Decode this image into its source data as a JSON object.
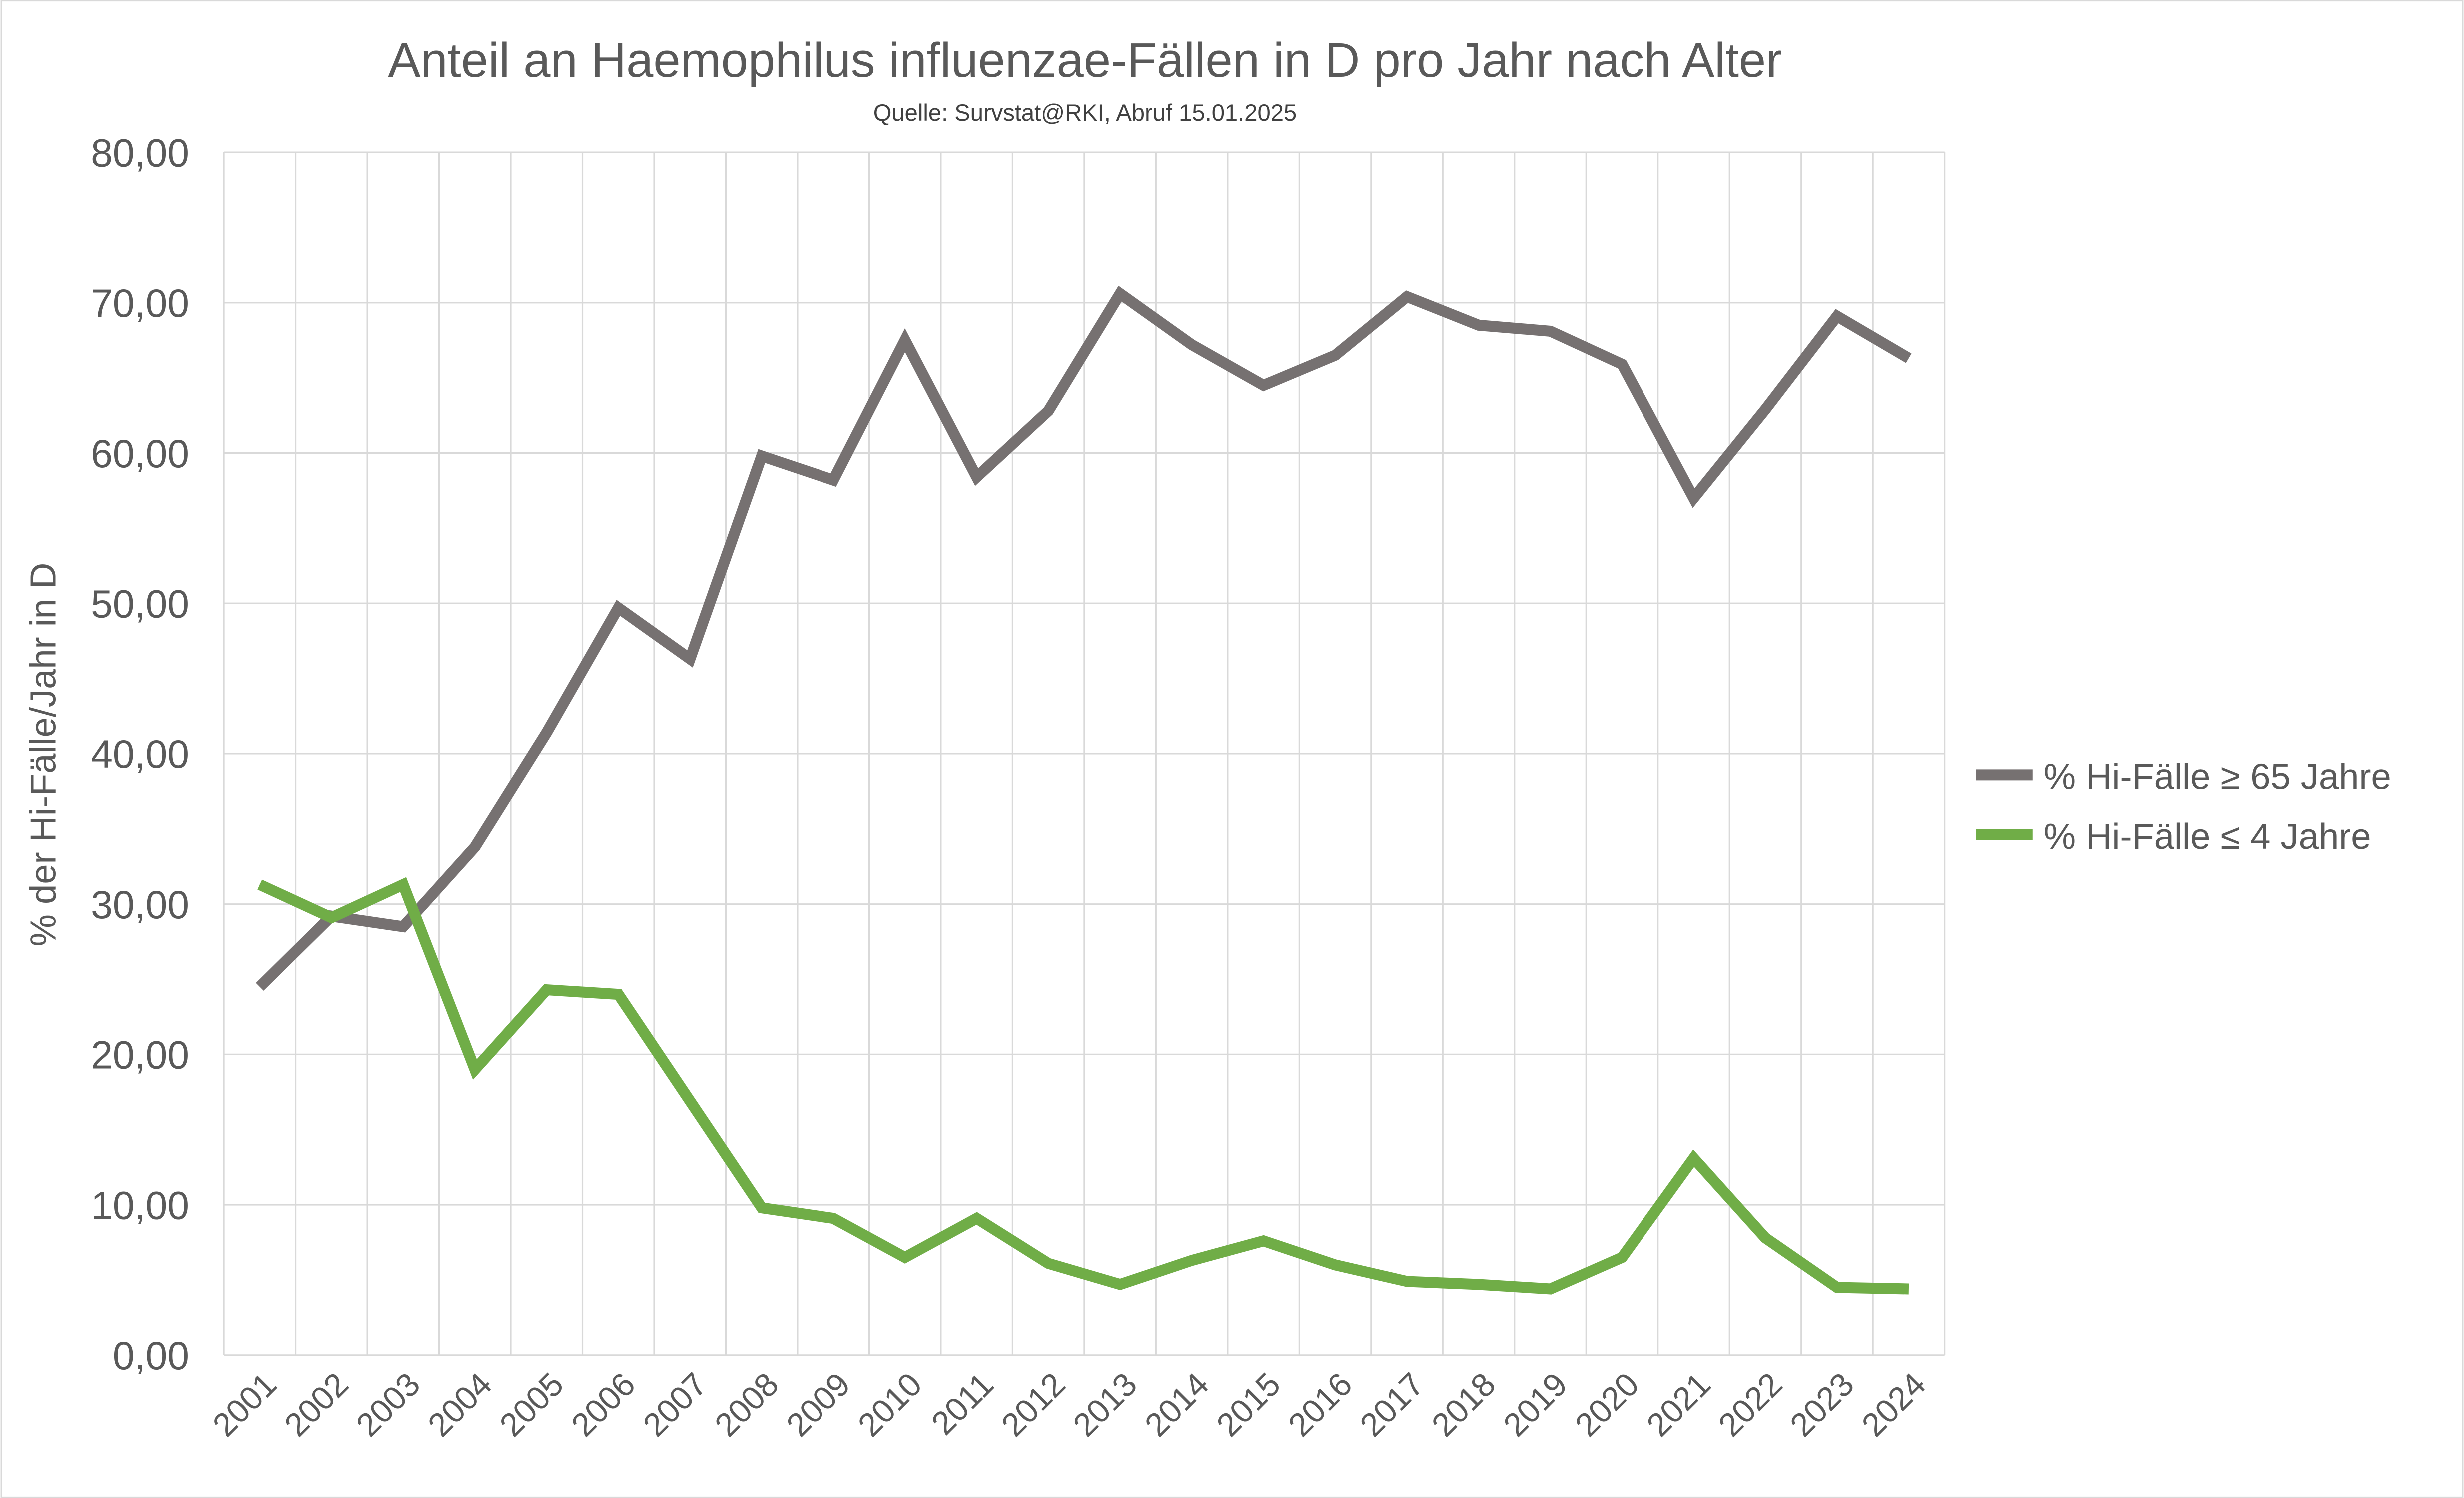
{
  "chart_data": {
    "type": "line",
    "title": "Anteil an Haemophilus influenzae-Fällen in D pro Jahr nach Alter",
    "subtitle": "Quelle: Survstat@RKI, Abruf 15.01.2025",
    "xlabel": "",
    "ylabel": "% der Hi-Fälle/Jahr in D",
    "ylim": [
      0,
      80
    ],
    "yticks": [
      "0,00",
      "10,00",
      "20,00",
      "30,00",
      "40,00",
      "50,00",
      "60,00",
      "70,00",
      "80,00"
    ],
    "grid": true,
    "legend_position": "right",
    "categories": [
      "2001",
      "2002",
      "2003",
      "2004",
      "2005",
      "2006",
      "2007",
      "2008",
      "2009",
      "2010",
      "2011",
      "2012",
      "2013",
      "2014",
      "2015",
      "2016",
      "2017",
      "2018",
      "2019",
      "2020",
      "2021",
      "2022",
      "2023",
      "2024"
    ],
    "series": [
      {
        "name": "% Hi-Fälle ≥ 65 Jahre",
        "color": "#767171",
        "values": [
          24.5,
          29.2,
          28.5,
          33.8,
          41.4,
          49.7,
          46.3,
          59.8,
          58.2,
          67.5,
          58.4,
          62.8,
          70.6,
          67.2,
          64.5,
          66.5,
          70.4,
          68.5,
          68.1,
          65.9,
          57.0,
          62.9,
          69.1,
          66.3
        ]
      },
      {
        "name": "% Hi-Fälle ≤ 4 Jahre",
        "color": "#70AD47",
        "values": [
          31.3,
          29.1,
          31.3,
          19.0,
          24.3,
          24.0,
          16.9,
          9.8,
          9.1,
          6.5,
          9.1,
          6.1,
          4.7,
          6.3,
          7.6,
          6.0,
          4.9,
          4.7,
          4.4,
          6.5,
          13.1,
          7.8,
          4.5,
          4.4
        ]
      }
    ]
  }
}
